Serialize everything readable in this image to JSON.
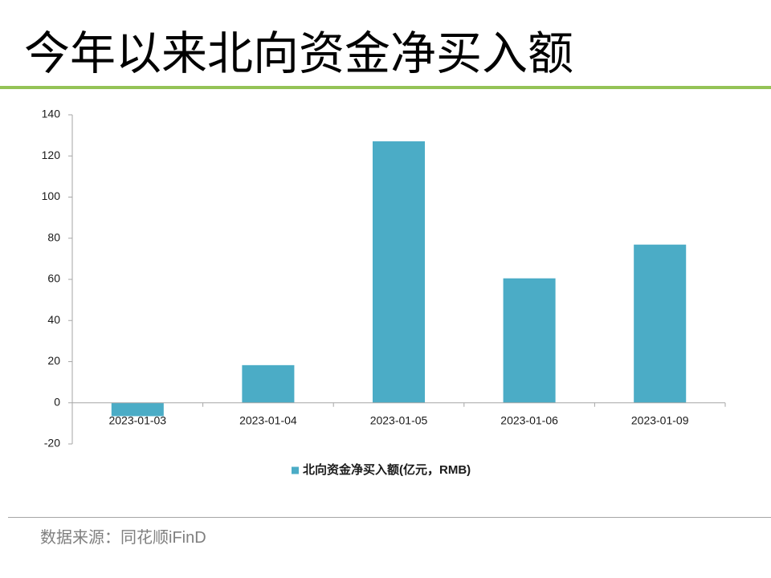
{
  "slide": {
    "title": "今年以来北向资金净买入额",
    "source": "数据来源：同花顺iFinD"
  },
  "colors": {
    "title_rule": "#94c356",
    "bar": "#4bacc6",
    "axis": "#a6a6a6",
    "tick_text": "#1a1a1a"
  },
  "chart_data": {
    "type": "bar",
    "title": "",
    "xlabel": "",
    "ylabel": "",
    "categories": [
      "2023-01-03",
      "2023-01-04",
      "2023-01-05",
      "2023-01-06",
      "2023-01-09"
    ],
    "series": [
      {
        "name": "北向资金净买入额(亿元，RMB)",
        "values": [
          -6.5,
          18.3,
          127.1,
          60.5,
          76.9
        ]
      }
    ],
    "ylim": [
      -20,
      140
    ],
    "yticks": [
      -20,
      0,
      20,
      40,
      60,
      80,
      100,
      120,
      140
    ],
    "grid": false,
    "legend": "bottom"
  }
}
